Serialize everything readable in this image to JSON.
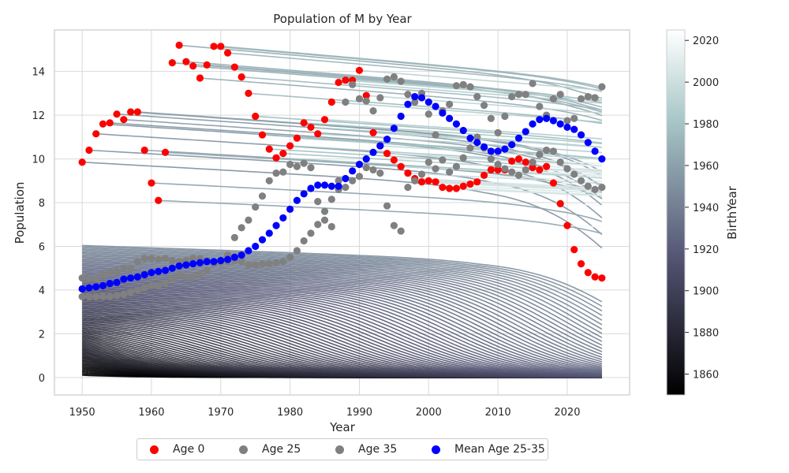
{
  "chart_data": {
    "type": "line+scatter",
    "title": "Population of M by Year",
    "xlabel": "Year",
    "ylabel": "Population",
    "xlim": [
      1946,
      2029
    ],
    "ylim": [
      -0.8,
      15.9
    ],
    "xticks": [
      1950,
      1960,
      1970,
      1980,
      1990,
      2000,
      2010,
      2020
    ],
    "yticks": [
      0,
      2,
      4,
      6,
      8,
      10,
      12,
      14
    ],
    "grid": true,
    "colorbar": {
      "label": "BirthYear",
      "range": [
        1850,
        2025
      ],
      "ticks": [
        1860,
        1880,
        1900,
        1920,
        1940,
        1960,
        1980,
        2000,
        2020
      ],
      "colormap": "bone"
    },
    "legend": {
      "placement": "bottom-center",
      "entries": [
        {
          "label": "Age 0",
          "color": "#ff0000"
        },
        {
          "label": "Age 25",
          "color": "#808080"
        },
        {
          "label": "Age 35",
          "color": "#808080"
        },
        {
          "label": "Mean Age 25-35",
          "color": "#0000ff"
        }
      ]
    },
    "cohort_lines": {
      "series_by_birth_year": "Population of each birth cohort from 1950 (or its birth year) to 2025",
      "birth_years": [
        1850,
        2025
      ]
    },
    "series": [
      {
        "name": "Age 0",
        "color": "#ff0000",
        "x": [
          1950,
          1951,
          1952,
          1953,
          1954,
          1955,
          1956,
          1957,
          1958,
          1959,
          1960,
          1961,
          1962,
          1963,
          1964,
          1965,
          1966,
          1967,
          1968,
          1969,
          1970,
          1971,
          1972,
          1973,
          1974,
          1975,
          1976,
          1977,
          1978,
          1979,
          1980,
          1981,
          1982,
          1983,
          1984,
          1985,
          1986,
          1987,
          1988,
          1989,
          1990,
          1991,
          1992,
          1993,
          1994,
          1995,
          1996,
          1997,
          1998,
          1999,
          2000,
          2001,
          2002,
          2003,
          2004,
          2005,
          2006,
          2007,
          2008,
          2009,
          2010,
          2011,
          2012,
          2013,
          2014,
          2015,
          2016,
          2017,
          2018,
          2019,
          2020,
          2021,
          2022,
          2023,
          2024,
          2025
        ],
        "y": [
          9.85,
          10.4,
          11.15,
          11.6,
          11.65,
          12.05,
          11.8,
          12.15,
          12.15,
          10.4,
          8.9,
          8.1,
          10.3,
          14.4,
          15.2,
          14.45,
          14.25,
          13.7,
          14.3,
          15.15,
          15.15,
          14.85,
          14.2,
          13.75,
          13.0,
          11.95,
          11.1,
          10.45,
          10.05,
          10.25,
          10.6,
          10.95,
          11.65,
          11.45,
          11.15,
          11.8,
          12.6,
          13.5,
          13.6,
          13.6,
          14.05,
          12.9,
          11.2,
          10.6,
          10.25,
          9.95,
          9.65,
          9.35,
          9.1,
          8.95,
          9.0,
          8.95,
          8.7,
          8.65,
          8.65,
          8.75,
          8.85,
          8.95,
          9.25,
          9.5,
          9.5,
          9.5,
          9.9,
          10.0,
          9.85,
          9.6,
          9.5,
          9.65,
          8.9,
          7.95,
          6.95,
          5.85,
          5.2,
          4.8,
          4.6,
          4.55
        ]
      },
      {
        "name": "Age 25",
        "color": "#808080",
        "x": [
          1950,
          1951,
          1952,
          1953,
          1954,
          1955,
          1956,
          1957,
          1958,
          1959,
          1960,
          1961,
          1962,
          1963,
          1964,
          1965,
          1966,
          1967,
          1968,
          1969,
          1970,
          1971,
          1972,
          1973,
          1974,
          1975,
          1976,
          1977,
          1978,
          1979,
          1980,
          1981,
          1982,
          1983,
          1984,
          1985,
          1986,
          1987,
          1988,
          1989,
          1990,
          1991,
          1992,
          1993,
          1994,
          1995,
          1996,
          1997,
          1998,
          1999,
          2000,
          2001,
          2002,
          2003,
          2004,
          2005,
          2006,
          2007,
          2008,
          2009,
          2010,
          2011,
          2012,
          2013,
          2014,
          2015,
          2016,
          2017,
          2018,
          2019,
          2020,
          2021,
          2022,
          2023,
          2024,
          2025
        ],
        "y": [
          3.7,
          3.7,
          3.7,
          3.7,
          3.7,
          3.75,
          3.8,
          3.9,
          4.0,
          4.1,
          4.2,
          4.2,
          4.3,
          4.5,
          4.7,
          4.6,
          4.6,
          4.7,
          4.9,
          5.2,
          5.3,
          5.6,
          6.4,
          6.85,
          7.2,
          7.8,
          8.3,
          9.0,
          9.35,
          9.4,
          9.75,
          9.65,
          9.8,
          9.6,
          8.05,
          7.2,
          6.9,
          8.6,
          8.7,
          9.0,
          9.2,
          9.6,
          9.5,
          9.35,
          7.85,
          6.95,
          6.7,
          8.7,
          9.0,
          9.3,
          9.85,
          9.55,
          9.95,
          9.4,
          9.65,
          10.05,
          10.5,
          11.0,
          10.5,
          10.0,
          9.75,
          9.55,
          9.4,
          9.25,
          9.5,
          9.85,
          10.2,
          10.4,
          10.35,
          9.85,
          9.55,
          9.3,
          9.0,
          8.75,
          8.6,
          8.7
        ]
      },
      {
        "name": "Age 35",
        "color": "#808080",
        "x": [
          1950,
          1951,
          1952,
          1953,
          1954,
          1955,
          1956,
          1957,
          1958,
          1959,
          1960,
          1961,
          1962,
          1963,
          1964,
          1965,
          1966,
          1967,
          1968,
          1969,
          1970,
          1971,
          1972,
          1973,
          1974,
          1975,
          1976,
          1977,
          1978,
          1979,
          1980,
          1981,
          1982,
          1983,
          1984,
          1985,
          1986,
          1987,
          1988,
          1989,
          1990,
          1991,
          1992,
          1993,
          1994,
          1995,
          1996,
          1997,
          1998,
          1999,
          2000,
          2001,
          2002,
          2003,
          2004,
          2005,
          2006,
          2007,
          2008,
          2009,
          2010,
          2011,
          2012,
          2013,
          2014,
          2015,
          2016,
          2017,
          2018,
          2019,
          2020,
          2021,
          2022,
          2023,
          2024,
          2025
        ],
        "y": [
          4.55,
          4.5,
          4.5,
          4.7,
          4.8,
          4.85,
          5.0,
          5.0,
          5.3,
          5.45,
          5.45,
          5.4,
          5.45,
          5.35,
          5.3,
          5.35,
          5.45,
          5.45,
          5.35,
          5.25,
          5.25,
          5.3,
          5.35,
          5.3,
          5.15,
          5.15,
          5.2,
          5.2,
          5.25,
          5.3,
          5.5,
          5.8,
          6.25,
          6.6,
          7.0,
          7.6,
          8.15,
          9.0,
          12.6,
          13.4,
          12.75,
          12.65,
          12.2,
          12.8,
          13.65,
          13.75,
          13.55,
          12.95,
          12.6,
          13.0,
          12.05,
          11.1,
          12.2,
          12.5,
          13.35,
          13.4,
          13.3,
          12.85,
          12.45,
          11.85,
          11.2,
          11.95,
          12.85,
          12.95,
          12.95,
          13.45,
          12.4,
          12.0,
          12.75,
          12.95,
          11.75,
          11.85,
          12.75,
          12.85,
          12.8,
          13.3
        ]
      },
      {
        "name": "Mean Age 25-35",
        "color": "#0000ff",
        "x": [
          1950,
          1951,
          1952,
          1953,
          1954,
          1955,
          1956,
          1957,
          1958,
          1959,
          1960,
          1961,
          1962,
          1963,
          1964,
          1965,
          1966,
          1967,
          1968,
          1969,
          1970,
          1971,
          1972,
          1973,
          1974,
          1975,
          1976,
          1977,
          1978,
          1979,
          1980,
          1981,
          1982,
          1983,
          1984,
          1985,
          1986,
          1987,
          1988,
          1989,
          1990,
          1991,
          1992,
          1993,
          1994,
          1995,
          1996,
          1997,
          1998,
          1999,
          2000,
          2001,
          2002,
          2003,
          2004,
          2005,
          2006,
          2007,
          2008,
          2009,
          2010,
          2011,
          2012,
          2013,
          2014,
          2015,
          2016,
          2017,
          2018,
          2019,
          2020,
          2021,
          2022,
          2023,
          2024,
          2025
        ],
        "y": [
          4.05,
          4.1,
          4.15,
          4.2,
          4.3,
          4.35,
          4.5,
          4.55,
          4.6,
          4.7,
          4.8,
          4.85,
          4.9,
          5.0,
          5.1,
          5.15,
          5.2,
          5.25,
          5.3,
          5.3,
          5.35,
          5.4,
          5.5,
          5.6,
          5.8,
          6.0,
          6.3,
          6.6,
          6.95,
          7.3,
          7.7,
          8.1,
          8.4,
          8.65,
          8.8,
          8.8,
          8.75,
          8.75,
          9.1,
          9.45,
          9.75,
          10.0,
          10.3,
          10.6,
          10.9,
          11.4,
          11.95,
          12.5,
          12.85,
          12.8,
          12.6,
          12.4,
          12.1,
          11.85,
          11.6,
          11.3,
          10.95,
          10.75,
          10.55,
          10.35,
          10.35,
          10.45,
          10.65,
          10.95,
          11.25,
          11.6,
          11.8,
          11.85,
          11.75,
          11.6,
          11.45,
          11.35,
          11.1,
          10.75,
          10.35,
          10.0
        ]
      }
    ]
  }
}
